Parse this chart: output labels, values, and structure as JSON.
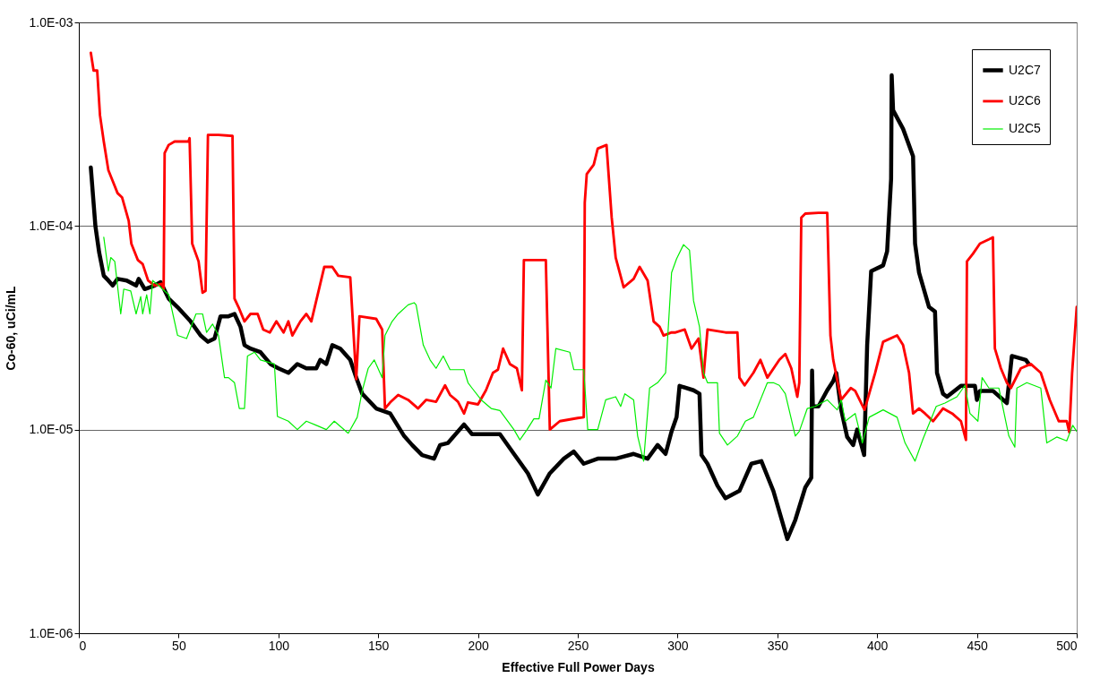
{
  "chart_data": {
    "type": "line",
    "xlabel": "Effective Full Power Days",
    "ylabel": "Co-60, uCi/mL",
    "log": true,
    "grid": "y",
    "legend": "top right",
    "marker": "none",
    "line_style": "solid",
    "xlim": [
      0,
      500
    ],
    "xticks": [
      0,
      50,
      100,
      150,
      200,
      250,
      300,
      350,
      400,
      450,
      500
    ],
    "ylim": [
      1e-06,
      0.001
    ],
    "yticks": [
      {
        "value": 1e-06,
        "label": "1.0E-06"
      },
      {
        "value": 1e-05,
        "label": "1.0E-05"
      },
      {
        "value": 0.0001,
        "label": "1.0E-04"
      },
      {
        "value": 0.001,
        "label": "1.0E-03"
      }
    ],
    "series": [
      {
        "name": "U2C7",
        "color": "#000000",
        "x": [
          6,
          8.3,
          10.2,
          12.5,
          14.8,
          17,
          19.4,
          24,
          28.7,
          30,
          33,
          38,
          41,
          45,
          49.4,
          56,
          61,
          64.7,
          68,
          71,
          75,
          78,
          81,
          83,
          86,
          91,
          96,
          100,
          105,
          109.5,
          114,
          119,
          121,
          124,
          127,
          131,
          136,
          139,
          142,
          149,
          156,
          163,
          167,
          172,
          178,
          181,
          185,
          188,
          193,
          197,
          204,
          211,
          218,
          225,
          230,
          236,
          243,
          248,
          253,
          260,
          269,
          278,
          285,
          290,
          294,
          297,
          299.5,
          301,
          308,
          311,
          312,
          315,
          320,
          324,
          331,
          337,
          342,
          348,
          355,
          359,
          364,
          367,
          367.4,
          367.8,
          370.6,
          375,
          378,
          379.5,
          382,
          385,
          388,
          390,
          393.5,
          395,
          397,
          403,
          405,
          407,
          407.3,
          408,
          413,
          418,
          419,
          421,
          426,
          429,
          430,
          433,
          435,
          442,
          449,
          450,
          451.5,
          458,
          465,
          467.5,
          474.5,
          476
        ],
        "values": [
          0.000194,
          0.0001,
          7.4e-05,
          5.7e-05,
          5.4e-05,
          5.1e-05,
          5.5e-05,
          5.4e-05,
          5.1e-05,
          5.5e-05,
          4.9e-05,
          5.1e-05,
          5.3e-05,
          4.4e-05,
          4e-05,
          3.4e-05,
          2.9e-05,
          2.7e-05,
          2.8e-05,
          3.6e-05,
          3.6e-05,
          3.7e-05,
          3.2e-05,
          2.6e-05,
          2.5e-05,
          2.4e-05,
          2.1e-05,
          2e-05,
          1.9e-05,
          2.1e-05,
          2e-05,
          2e-05,
          2.2e-05,
          2.1e-05,
          2.6e-05,
          2.5e-05,
          2.2e-05,
          1.8e-05,
          1.5e-05,
          1.27e-05,
          1.2e-05,
          9.3e-06,
          8.4e-06,
          7.5e-06,
          7.2e-06,
          8.4e-06,
          8.6e-06,
          9.3e-06,
          1.06e-05,
          9.5e-06,
          9.5e-06,
          9.5e-06,
          7.6e-06,
          6.1e-06,
          4.8e-06,
          6.1e-06,
          7.2e-06,
          7.8e-06,
          6.8e-06,
          7.2e-06,
          7.2e-06,
          7.6e-06,
          7.2e-06,
          8.4e-06,
          7.6e-06,
          9.8e-06,
          1.15e-05,
          1.64e-05,
          1.56e-05,
          1.5e-05,
          7.5e-06,
          6.8e-06,
          5.3e-06,
          4.6e-06,
          5e-06,
          6.8e-06,
          7e-06,
          5e-06,
          2.9e-06,
          3.6e-06,
          5.2e-06,
          5.8e-06,
          1.95e-05,
          1.3e-05,
          1.3e-05,
          1.56e-05,
          1.73e-05,
          1.9e-05,
          1.25e-05,
          9.2e-06,
          8.4e-06,
          1e-05,
          7.5e-06,
          2.6e-05,
          6e-05,
          6.4e-05,
          7.5e-05,
          0.00017,
          0.00055,
          0.00037,
          0.0003,
          0.00022,
          8.2e-05,
          5.9e-05,
          4e-05,
          3.8e-05,
          1.9e-05,
          1.5e-05,
          1.45e-05,
          1.64e-05,
          1.64e-05,
          1.4e-05,
          1.55e-05,
          1.55e-05,
          1.35e-05,
          2.3e-05,
          2.2e-05,
          2.1e-05
        ]
      },
      {
        "name": "U2C6",
        "color": "#ff0000",
        "x": [
          6,
          7.4,
          9.2,
          10.6,
          12.5,
          14.8,
          16.6,
          19.4,
          21.7,
          25,
          26.3,
          29.6,
          32,
          34.7,
          38,
          41.6,
          42.5,
          43,
          45,
          48,
          55,
          55.5,
          56.8,
          60,
          62,
          63.5,
          64.7,
          70,
          77,
          78,
          80,
          83,
          86,
          89.6,
          92.4,
          95.7,
          99,
          102.6,
          105,
          107,
          111,
          114,
          116.5,
          123,
          127,
          130,
          136,
          139,
          140.6,
          149,
          152,
          153.4,
          156,
          160,
          165,
          170,
          174,
          179,
          183.5,
          186,
          190,
          193,
          195,
          200,
          204,
          207.5,
          210,
          212.6,
          216,
          219.5,
          222,
          223,
          234,
          236,
          241,
          250,
          253,
          253.5,
          254.5,
          258,
          260,
          264.4,
          267,
          269,
          273,
          278,
          281,
          285,
          288,
          291,
          293,
          297,
          299,
          303.6,
          307,
          310.5,
          313,
          315,
          324,
          330,
          331,
          333.6,
          338,
          341.5,
          345,
          351,
          354,
          357,
          360,
          361,
          362,
          364,
          370.6,
          375,
          376.6,
          378,
          382,
          386.8,
          389,
          393.7,
          399,
          403,
          410,
          413,
          416,
          418,
          421,
          424,
          428,
          433,
          437.6,
          442,
          444.5,
          445,
          448,
          451.5,
          456,
          458,
          459,
          462,
          465,
          467,
          472,
          477,
          482,
          486.5,
          491,
          495,
          496.3,
          497.7,
          500
        ],
        "values": [
          0.00071,
          0.00058,
          0.00058,
          0.00035,
          0.00026,
          0.000188,
          0.00017,
          0.000145,
          0.000138,
          0.000106,
          8.2e-05,
          6.8e-05,
          6.5e-05,
          5.4e-05,
          5.1e-05,
          5.2e-05,
          4.9e-05,
          0.000228,
          0.00025,
          0.00026,
          0.00026,
          0.00027,
          8.2e-05,
          6.7e-05,
          4.7e-05,
          4.8e-05,
          0.00028,
          0.00028,
          0.000277,
          4.4e-05,
          4e-05,
          3.4e-05,
          3.7e-05,
          3.7e-05,
          3.1e-05,
          3e-05,
          3.4e-05,
          3e-05,
          3.4e-05,
          2.9e-05,
          3.4e-05,
          3.7e-05,
          3.4e-05,
          6.3e-05,
          6.3e-05,
          5.7e-05,
          5.6e-05,
          1.77e-05,
          3.6e-05,
          3.5e-05,
          3.1e-05,
          1.27e-05,
          1.36e-05,
          1.48e-05,
          1.4e-05,
          1.27e-05,
          1.4e-05,
          1.37e-05,
          1.65e-05,
          1.48e-05,
          1.37e-05,
          1.2e-05,
          1.36e-05,
          1.33e-05,
          1.56e-05,
          1.9e-05,
          1.97e-05,
          2.5e-05,
          2.1e-05,
          2e-05,
          1.56e-05,
          6.8e-05,
          6.8e-05,
          1e-05,
          1.1e-05,
          1.14e-05,
          1.15e-05,
          0.00013,
          0.00018,
          0.0002,
          0.00024,
          0.00025,
          0.00011,
          7e-05,
          5e-05,
          5.5e-05,
          6.3e-05,
          5.4e-05,
          3.4e-05,
          3.2e-05,
          2.9e-05,
          3e-05,
          3e-05,
          3.1e-05,
          2.5e-05,
          2.8e-05,
          1.8e-05,
          3.1e-05,
          3e-05,
          3e-05,
          1.8e-05,
          1.65e-05,
          1.9e-05,
          2.2e-05,
          1.8e-05,
          2.2e-05,
          2.35e-05,
          2e-05,
          1.45e-05,
          1.7e-05,
          0.00011,
          0.000115,
          0.000116,
          0.000116,
          2.9e-05,
          2.2e-05,
          1.4e-05,
          1.6e-05,
          1.55e-05,
          1.25e-05,
          1.9e-05,
          2.7e-05,
          2.9e-05,
          2.6e-05,
          1.9e-05,
          1.2e-05,
          1.27e-05,
          1.2e-05,
          1.1e-05,
          1.27e-05,
          1.2e-05,
          1.1e-05,
          8.9e-06,
          6.7e-05,
          7.3e-05,
          8.2e-05,
          8.6e-05,
          8.8e-05,
          2.5e-05,
          2e-05,
          1.7e-05,
          1.6e-05,
          2e-05,
          2.1e-05,
          1.9e-05,
          1.4e-05,
          1.1e-05,
          1.1e-05,
          9.7e-06,
          1.9e-05,
          4e-05
        ]
      },
      {
        "name": "U2C5",
        "color": "#00ee00",
        "x": [
          12.5,
          14.8,
          16,
          18,
          21,
          22.5,
          26,
          28.7,
          31,
          32,
          34,
          35.6,
          37,
          40,
          45,
          49.5,
          54,
          58.7,
          62,
          64,
          67,
          70,
          73,
          75,
          78,
          80.4,
          83,
          84.5,
          88,
          91,
          98,
          99.5,
          105,
          109.5,
          114,
          119,
          124,
          128,
          135,
          139.5,
          142,
          145,
          148,
          152,
          153.4,
          157,
          160,
          165,
          168,
          169,
          172.6,
          176,
          179,
          182.6,
          186,
          193,
          195,
          197,
          201.6,
          206.6,
          211,
          218,
          221,
          224.6,
          228,
          230.6,
          234,
          236.6,
          239,
          246,
          248,
          253,
          255,
          260,
          264,
          269,
          271.5,
          273.6,
          278,
          280,
          283,
          286,
          290,
          294,
          297,
          299.5,
          303,
          306,
          308,
          311,
          313,
          315,
          320,
          321,
          325,
          330,
          334,
          338,
          345,
          348,
          351,
          354,
          359,
          361,
          365,
          369,
          375,
          380,
          382,
          384,
          389,
          392.6,
          396,
          403,
          410,
          414,
          419,
          423,
          429.6,
          434,
          440,
          444,
          446.5,
          450.5,
          452.6,
          456,
          461,
          466,
          469,
          470,
          475,
          482,
          485,
          490,
          495,
          498,
          500
        ],
        "values": [
          8.8e-05,
          6e-05,
          7e-05,
          6.7e-05,
          3.7e-05,
          4.9e-05,
          4.8e-05,
          3.7e-05,
          4.5e-05,
          3.7e-05,
          4.6e-05,
          3.7e-05,
          5.4e-05,
          5.1e-05,
          4.6e-05,
          2.9e-05,
          2.8e-05,
          3.7e-05,
          3.7e-05,
          3e-05,
          3.3e-05,
          2.9e-05,
          1.8e-05,
          1.8e-05,
          1.7e-05,
          1.27e-05,
          1.27e-05,
          2.3e-05,
          2.4e-05,
          2.2e-05,
          2.1e-05,
          1.16e-05,
          1.1e-05,
          1e-05,
          1.1e-05,
          1.05e-05,
          1e-05,
          1.1e-05,
          9.6e-06,
          1.15e-05,
          1.55e-05,
          2e-05,
          2.2e-05,
          1.8e-05,
          2.9e-05,
          3.4e-05,
          3.7e-05,
          4.1e-05,
          4.2e-05,
          4.1e-05,
          2.6e-05,
          2.2e-05,
          2e-05,
          2.3e-05,
          1.97e-05,
          1.97e-05,
          1.7e-05,
          1.6e-05,
          1.4e-05,
          1.27e-05,
          1.24e-05,
          1e-05,
          8.9e-06,
          1e-05,
          1.13e-05,
          1.13e-05,
          1.75e-05,
          1.6e-05,
          2.5e-05,
          2.4e-05,
          1.97e-05,
          1.97e-05,
          1e-05,
          1e-05,
          1.4e-05,
          1.45e-05,
          1.3e-05,
          1.5e-05,
          1.4e-05,
          9.3e-06,
          7e-06,
          1.6e-05,
          1.7e-05,
          1.9e-05,
          5.9e-05,
          6.9e-05,
          8.1e-05,
          7.6e-05,
          4.3e-05,
          3.2e-05,
          1.9e-05,
          1.7e-05,
          1.7e-05,
          9.6e-06,
          8.4e-06,
          9.3e-06,
          1.1e-05,
          1.15e-05,
          1.7e-05,
          1.7e-05,
          1.65e-05,
          1.5e-05,
          9.3e-06,
          9.8e-06,
          1.27e-05,
          1.3e-05,
          1.4e-05,
          1.25e-05,
          1.4e-05,
          1.1e-05,
          1.2e-05,
          8.6e-06,
          1.15e-05,
          1.25e-05,
          1.15e-05,
          8.6e-06,
          7e-06,
          9e-06,
          1.3e-05,
          1.35e-05,
          1.45e-05,
          1.65e-05,
          1.2e-05,
          1.1e-05,
          1.8e-05,
          1.6e-05,
          1.6e-05,
          9.3e-06,
          8.2e-06,
          1.6e-05,
          1.7e-05,
          1.6e-05,
          8.6e-06,
          9.2e-06,
          8.8e-06,
          1.05e-05,
          9.8e-06
        ]
      }
    ]
  }
}
